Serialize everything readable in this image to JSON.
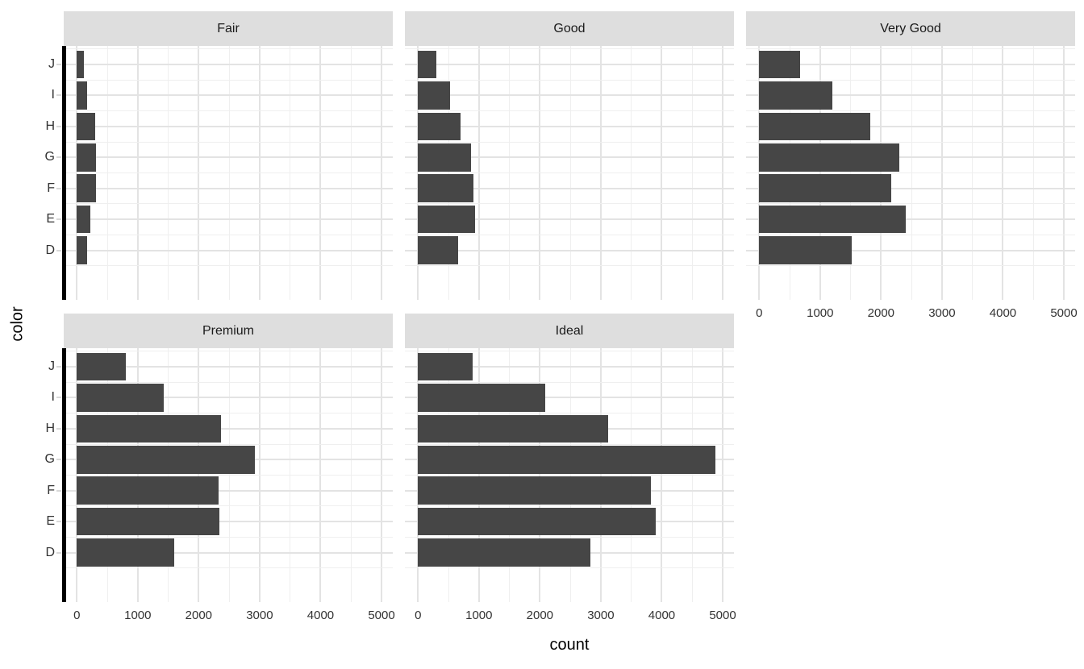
{
  "chart_data": {
    "type": "bar",
    "orientation": "horizontal",
    "title": "",
    "xlabel": "count",
    "ylabel": "color",
    "facet_variable_values": [
      "Fair",
      "Good",
      "Very Good",
      "Premium",
      "Ideal"
    ],
    "categories_top_to_bottom": [
      "J",
      "I",
      "H",
      "G",
      "F",
      "E",
      "D"
    ],
    "x_ticks": [
      0,
      1000,
      2000,
      3000,
      4000,
      5000
    ],
    "x_tick_labels": [
      "0",
      "1000",
      "2000",
      "3000",
      "4000",
      "5000"
    ],
    "x_minor_ticks": [
      500,
      1500,
      2500,
      3500,
      4500
    ],
    "xlim_display": [
      -215,
      5185
    ],
    "grid": true,
    "legend": "none",
    "facets": [
      {
        "label": "Fair",
        "row": 0,
        "col": 0,
        "values": [
          119,
          175,
          303,
          314,
          312,
          224,
          163
        ]
      },
      {
        "label": "Good",
        "row": 0,
        "col": 1,
        "values": [
          307,
          522,
          702,
          871,
          909,
          933,
          662
        ]
      },
      {
        "label": "Very Good",
        "row": 0,
        "col": 2,
        "values": [
          678,
          1204,
          1824,
          2299,
          2164,
          2400,
          1513
        ]
      },
      {
        "label": "Premium",
        "row": 1,
        "col": 0,
        "values": [
          808,
          1428,
          2360,
          2924,
          2331,
          2337,
          1603
        ]
      },
      {
        "label": "Ideal",
        "row": 1,
        "col": 1,
        "values": [
          896,
          2093,
          3115,
          4884,
          3826,
          3903,
          2834
        ]
      }
    ],
    "colors": {
      "bar_fill": "#464646",
      "strip_background": "#DEDEDE",
      "strip_text": "#1a1a1a",
      "grid_major": "#E3E3E3",
      "grid_minor": "#EFEFEF",
      "axis_text": "#333333",
      "axis_title": "#000000",
      "y_axis_line": "#000000",
      "tick_mark": "#D9D9D9",
      "panel_background": "#FFFFFF"
    }
  }
}
